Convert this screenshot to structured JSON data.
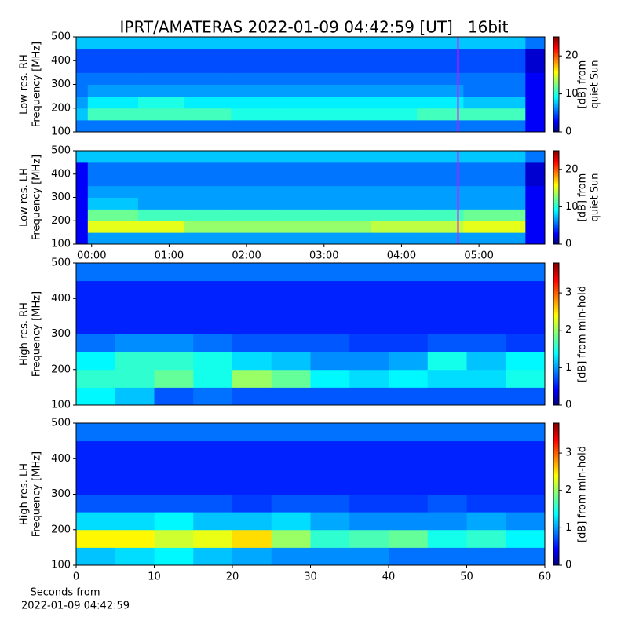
{
  "chart_data": [
    {
      "type": "heatmap",
      "title": "IPRT/AMATERAS 2022-01-09 04:42:59 [UT]   16bit",
      "y_label": [
        "Low res. RH",
        "Frequency [MHz]"
      ],
      "colorbar_label": [
        "[dB] from",
        "quiet Sun"
      ],
      "xlim": [
        -0.2,
        5.85
      ],
      "ylim": [
        100,
        500
      ],
      "yticks": [
        100,
        200,
        300,
        400,
        500
      ],
      "clim": [
        0,
        25
      ],
      "cticks": [
        0,
        10,
        20
      ],
      "colormap": "jet",
      "marker_x": 4.73,
      "marker_color": "#ff00ff",
      "x_edges": [
        -0.2,
        -0.05,
        0.6,
        1.2,
        1.8,
        2.4,
        3,
        3.6,
        4.2,
        4.8,
        5.6,
        5.85
      ],
      "y_edges": [
        100,
        150,
        200,
        250,
        300,
        350,
        400,
        450,
        500
      ],
      "z": [
        [
          6,
          6,
          6,
          6,
          6,
          6,
          6,
          6,
          6,
          6,
          3
        ],
        [
          8,
          11,
          11,
          11,
          10,
          10,
          10,
          10,
          11,
          11,
          3
        ],
        [
          7,
          9,
          10,
          9,
          9,
          9,
          9,
          9,
          9,
          8,
          3
        ],
        [
          6,
          7,
          7,
          7,
          7,
          7,
          7,
          7,
          7,
          6,
          3
        ],
        [
          6,
          6,
          6,
          6,
          6,
          6,
          6,
          6,
          6,
          6,
          3
        ],
        [
          5,
          5,
          5,
          5,
          5,
          5,
          5,
          5,
          5,
          5,
          2
        ],
        [
          5,
          5,
          5,
          5,
          5,
          5,
          5,
          5,
          5,
          5,
          2
        ],
        [
          8,
          8,
          8,
          8,
          8,
          8,
          8,
          8,
          8,
          8,
          6
        ]
      ]
    },
    {
      "type": "heatmap",
      "y_label": [
        "Low res. LH",
        "Frequency [MHz]"
      ],
      "colorbar_label": [
        "[dB] from",
        "quiet Sun"
      ],
      "xlim": [
        -0.2,
        5.85
      ],
      "ylim": [
        100,
        500
      ],
      "yticks": [
        100,
        200,
        300,
        400,
        500
      ],
      "xticks": [
        {
          "value": 0,
          "label": "00:00"
        },
        {
          "value": 1,
          "label": "01:00"
        },
        {
          "value": 2,
          "label": "02:00"
        },
        {
          "value": 3,
          "label": "03:00"
        },
        {
          "value": 4,
          "label": "04:00"
        },
        {
          "value": 5,
          "label": "05:00"
        }
      ],
      "clim": [
        0,
        25
      ],
      "cticks": [
        0,
        10,
        20
      ],
      "colormap": "jet",
      "marker_x": 4.73,
      "marker_color": "#ff00ff",
      "x_edges": [
        -0.2,
        -0.05,
        0.6,
        1.2,
        1.8,
        2.4,
        3,
        3.6,
        4.2,
        4.8,
        5.6,
        5.85
      ],
      "y_edges": [
        100,
        150,
        200,
        250,
        300,
        350,
        400,
        450,
        500
      ],
      "z": [
        [
          3,
          7,
          7,
          7,
          7,
          7,
          7,
          7,
          7,
          7,
          3
        ],
        [
          3,
          15,
          15,
          13,
          13,
          13,
          13,
          14,
          14,
          15,
          3
        ],
        [
          3,
          12,
          11,
          11,
          11,
          11,
          11,
          11,
          11,
          12,
          3
        ],
        [
          3,
          8,
          7,
          7,
          7,
          7,
          7,
          7,
          7,
          7,
          3
        ],
        [
          3,
          7,
          7,
          7,
          7,
          7,
          7,
          7,
          7,
          7,
          3
        ],
        [
          3,
          6,
          6,
          6,
          6,
          6,
          6,
          6,
          6,
          6,
          2
        ],
        [
          3,
          6,
          6,
          6,
          6,
          6,
          6,
          6,
          6,
          6,
          2
        ],
        [
          8,
          8,
          8,
          8,
          8,
          8,
          8,
          8,
          8,
          8,
          6
        ]
      ]
    },
    {
      "type": "heatmap",
      "y_label": [
        "High res. RH",
        "Frequency [MHz]"
      ],
      "colorbar_label": [
        "[dB] from min-hold"
      ],
      "xlim": [
        0,
        60
      ],
      "ylim": [
        100,
        500
      ],
      "yticks": [
        100,
        200,
        300,
        400,
        500
      ],
      "clim": [
        0,
        3.8
      ],
      "cticks": [
        0,
        1,
        2,
        3
      ],
      "colormap": "jet",
      "x_edges": [
        0,
        5,
        10,
        15,
        20,
        25,
        30,
        35,
        40,
        45,
        50,
        55,
        60
      ],
      "y_edges": [
        100,
        150,
        200,
        250,
        300,
        350,
        400,
        450,
        500
      ],
      "z": [
        [
          1.4,
          1.2,
          0.8,
          0.9,
          0.8,
          0.8,
          0.8,
          0.8,
          0.8,
          0.8,
          0.8,
          0.8
        ],
        [
          1.6,
          1.6,
          1.8,
          1.5,
          2.0,
          1.8,
          1.4,
          1.3,
          1.4,
          1.3,
          1.3,
          1.5
        ],
        [
          1.4,
          1.6,
          1.6,
          1.5,
          1.3,
          1.2,
          1.0,
          1.0,
          1.1,
          1.5,
          1.2,
          1.4
        ],
        [
          0.9,
          1.0,
          1.0,
          0.9,
          0.8,
          0.8,
          0.8,
          0.7,
          0.7,
          0.8,
          0.8,
          0.7
        ],
        [
          0.6,
          0.6,
          0.6,
          0.6,
          0.6,
          0.6,
          0.6,
          0.6,
          0.6,
          0.6,
          0.6,
          0.6
        ],
        [
          0.6,
          0.6,
          0.6,
          0.6,
          0.6,
          0.6,
          0.6,
          0.6,
          0.6,
          0.6,
          0.6,
          0.6
        ],
        [
          0.6,
          0.6,
          0.6,
          0.6,
          0.6,
          0.6,
          0.6,
          0.6,
          0.6,
          0.6,
          0.6,
          0.6
        ],
        [
          0.9,
          0.9,
          0.9,
          0.9,
          0.9,
          0.9,
          0.9,
          0.9,
          0.9,
          0.9,
          0.9,
          0.9
        ]
      ]
    },
    {
      "type": "heatmap",
      "y_label": [
        "High res. LH",
        "Frequency [MHz]"
      ],
      "colorbar_label": [
        "[dB] from min-hold"
      ],
      "x_label": [
        "Seconds from",
        "2022-01-09 04:42:59"
      ],
      "xlim": [
        0,
        60
      ],
      "ylim": [
        100,
        500
      ],
      "yticks": [
        100,
        200,
        300,
        400,
        500
      ],
      "xticks": [
        0,
        10,
        20,
        30,
        40,
        50,
        60
      ],
      "clim": [
        0,
        3.8
      ],
      "cticks": [
        0,
        1,
        2,
        3
      ],
      "colormap": "jet",
      "x_edges": [
        0,
        5,
        10,
        15,
        20,
        25,
        30,
        35,
        40,
        45,
        50,
        55,
        60
      ],
      "y_edges": [
        100,
        150,
        200,
        250,
        300,
        350,
        400,
        450,
        500
      ],
      "z": [
        [
          1.2,
          1.3,
          1.4,
          1.2,
          1.1,
          1.0,
          1.0,
          1.0,
          0.9,
          0.9,
          0.9,
          0.9
        ],
        [
          2.4,
          2.4,
          2.2,
          2.3,
          2.5,
          2.0,
          1.6,
          1.7,
          1.8,
          1.5,
          1.6,
          1.4
        ],
        [
          1.3,
          1.3,
          1.4,
          1.2,
          1.2,
          1.3,
          1.1,
          1.0,
          1.0,
          1.0,
          1.1,
          1.0
        ],
        [
          0.8,
          0.8,
          0.8,
          0.8,
          0.7,
          0.8,
          0.8,
          0.7,
          0.7,
          0.8,
          0.7,
          0.7
        ],
        [
          0.6,
          0.6,
          0.6,
          0.6,
          0.6,
          0.6,
          0.6,
          0.6,
          0.6,
          0.6,
          0.6,
          0.6
        ],
        [
          0.6,
          0.6,
          0.6,
          0.6,
          0.6,
          0.6,
          0.6,
          0.6,
          0.6,
          0.6,
          0.6,
          0.6
        ],
        [
          0.6,
          0.6,
          0.6,
          0.6,
          0.6,
          0.6,
          0.6,
          0.6,
          0.6,
          0.6,
          0.6,
          0.6
        ],
        [
          0.9,
          0.9,
          0.9,
          0.9,
          0.9,
          0.9,
          0.9,
          0.9,
          0.9,
          0.9,
          0.9,
          0.9
        ]
      ]
    }
  ]
}
